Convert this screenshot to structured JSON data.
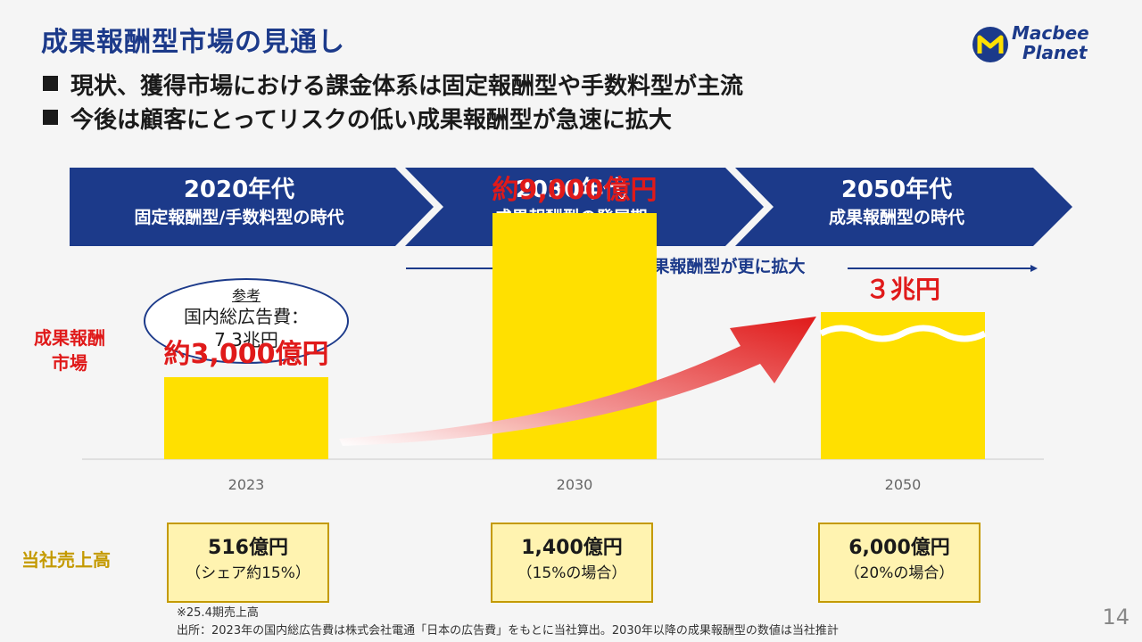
{
  "title": "成果報酬型市場の見通し",
  "logo": {
    "line1": "Macbee",
    "line2": "Planet"
  },
  "bullets": [
    "現状、獲得市場における課金体系は固定報酬型や手数料型が主流",
    "今後は顧客にとってリスクの低い成果報酬型が急速に拡大"
  ],
  "phases": [
    {
      "year": "2020年代",
      "label": "固定報酬型/手数料型の時代"
    },
    {
      "year": "2030年代",
      "label": "成果報酬型の発展期"
    },
    {
      "year": "2050年代",
      "label": "成果報酬型の時代"
    }
  ],
  "expand_label": "成果報酬型が更に拡大",
  "reference": {
    "title": "参考",
    "line1": "国内総広告費：",
    "line2": "7.3兆円"
  },
  "market_label_1": "成果報酬",
  "market_label_2": "市場",
  "sales_label": "当社売上高",
  "chart_data": {
    "type": "bar",
    "categories": [
      "2023",
      "2030",
      "2050"
    ],
    "values": [
      3000,
      9000,
      30000
    ],
    "data_labels": [
      "約3,000億円",
      "約9,000億円",
      "３兆円"
    ],
    "axis_break_on": "2050",
    "units": "億円",
    "colors": {
      "bar": "#ffe000",
      "label": "#e01a1a",
      "axis": "#cccccc",
      "tick": "#666666"
    }
  },
  "sales": [
    {
      "value": "516億円",
      "note": "（シェア約15%）"
    },
    {
      "value": "1,400億円",
      "note": "（15%の場合）"
    },
    {
      "value": "6,000億円",
      "note": "（20%の場合）"
    }
  ],
  "notes": [
    "※25.4期売上高",
    "出所：2023年の国内総広告費は株式会社電通「日本の広告費」をもとに当社算出。2030年以降の成果報酬型の数値は当社推計"
  ],
  "page_number": "14",
  "colors": {
    "navy": "#1c3a8a",
    "red": "#e01a1a",
    "yellow": "#ffe000",
    "gold": "#c49a00"
  }
}
